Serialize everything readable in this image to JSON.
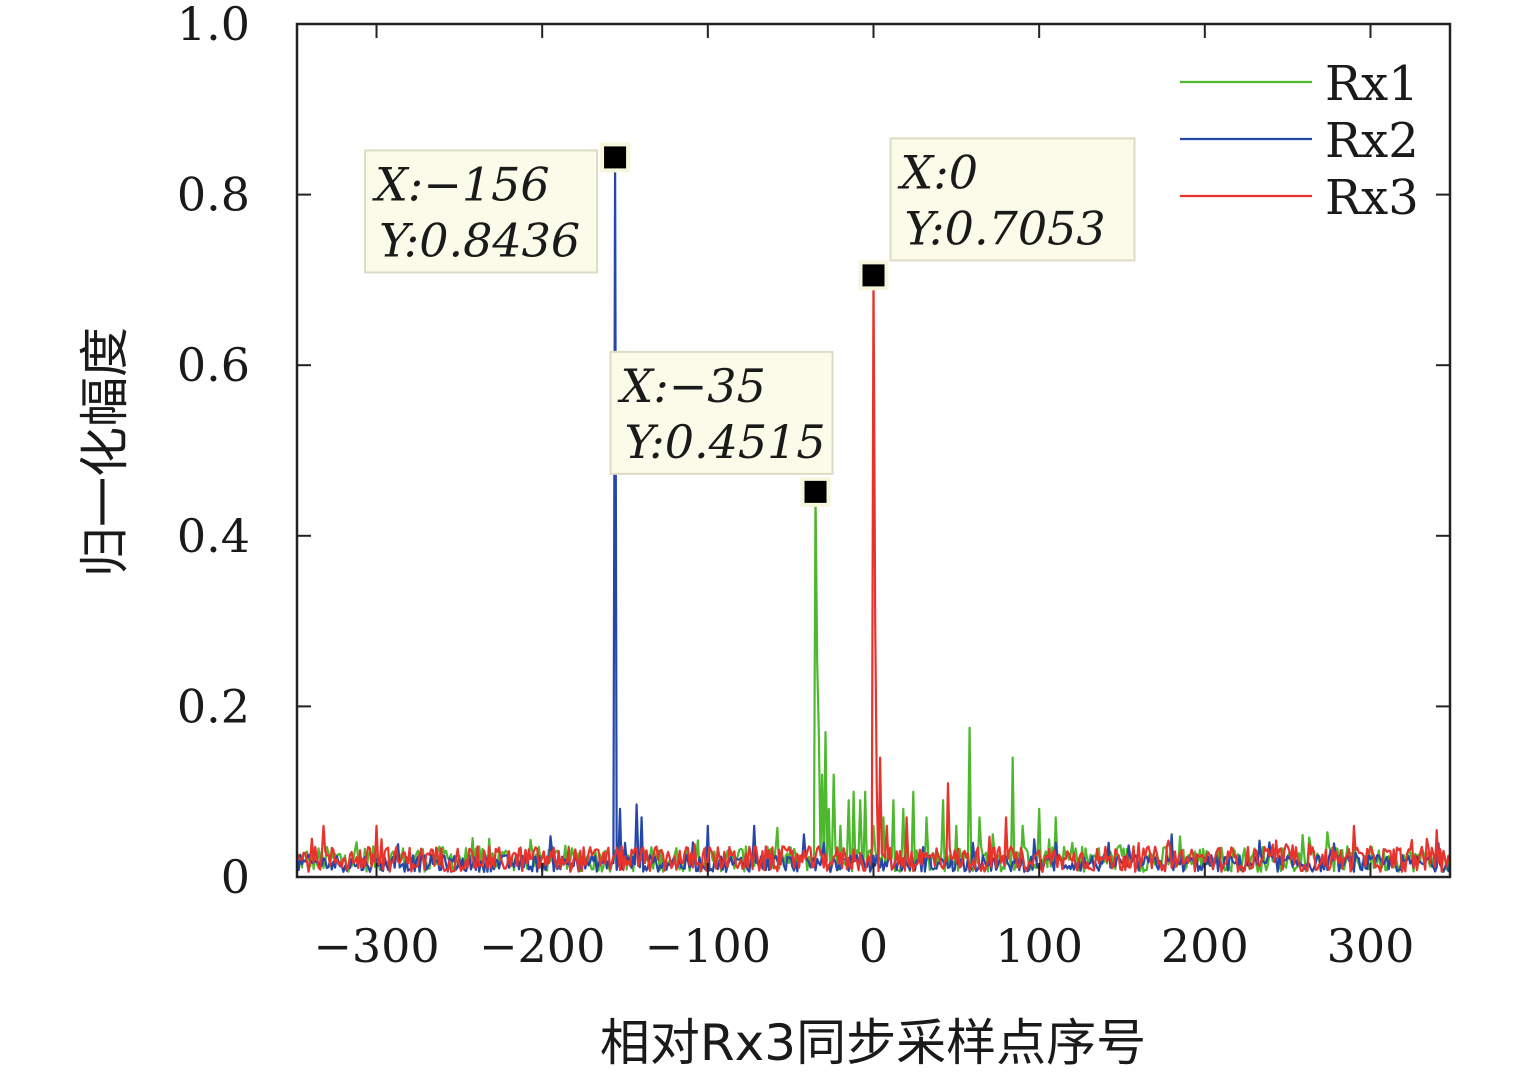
{
  "chart_data": {
    "type": "line",
    "xlabel": "相对Rx3同步采样点序号",
    "ylabel": "归一化幅度",
    "xlim": [
      -348,
      348
    ],
    "ylim": [
      0,
      1.0
    ],
    "x_ticks": [
      "−300",
      "−200",
      "−100",
      "0",
      "100",
      "200",
      "300"
    ],
    "x_tick_values": [
      -300,
      -200,
      -100,
      0,
      100,
      200,
      300
    ],
    "y_ticks": [
      "0",
      "0.2",
      "0.4",
      "0.6",
      "0.8",
      "1.0"
    ],
    "y_tick_values": [
      0,
      0.2,
      0.4,
      0.6,
      0.8,
      1.0
    ],
    "grid": false,
    "legend_position": "top-right",
    "series": [
      {
        "name": "Rx1",
        "color": "#4db82e",
        "peak": {
          "x": -35,
          "y": 0.4515
        },
        "noise_level": 0.03,
        "points": [
          [
            -34,
            0.25
          ],
          [
            -33,
            0.17
          ],
          [
            -31,
            0.12
          ],
          [
            -29,
            0.17
          ],
          [
            -27,
            0.08
          ],
          [
            -24,
            0.12
          ],
          [
            -20,
            0.06
          ],
          [
            -15,
            0.09
          ],
          [
            -12,
            0.1
          ],
          [
            -8,
            0.09
          ],
          [
            -5,
            0.1
          ],
          [
            0,
            0.06
          ],
          [
            6,
            0.07
          ],
          [
            12,
            0.09
          ],
          [
            18,
            0.08
          ],
          [
            24,
            0.1
          ],
          [
            32,
            0.07
          ],
          [
            42,
            0.09
          ],
          [
            50,
            0.06
          ],
          [
            58,
            0.175
          ],
          [
            64,
            0.07
          ],
          [
            72,
            0.05
          ],
          [
            84,
            0.14
          ],
          [
            90,
            0.06
          ],
          [
            100,
            0.08
          ],
          [
            110,
            0.07
          ],
          [
            120,
            0.04
          ]
        ]
      },
      {
        "name": "Rx2",
        "color": "#2547a8",
        "peak": {
          "x": -156,
          "y": 0.8436
        },
        "noise_level": 0.02,
        "points": [
          [
            -153,
            0.08
          ],
          [
            -150,
            0.04
          ],
          [
            -143,
            0.085
          ],
          [
            -140,
            0.07
          ],
          [
            -100,
            0.06
          ],
          [
            -72,
            0.06
          ],
          [
            -42,
            0.05
          ],
          [
            -30,
            0.04
          ],
          [
            30,
            0.035
          ],
          [
            60,
            0.04
          ],
          [
            110,
            0.04
          ],
          [
            180,
            0.05
          ]
        ]
      },
      {
        "name": "Rx3",
        "color": "#e8322c",
        "peak": {
          "x": 0,
          "y": 0.7053
        },
        "noise_level": 0.03,
        "points": [
          [
            -332,
            0.06
          ],
          [
            -300,
            0.06
          ],
          [
            1,
            0.3
          ],
          [
            2,
            0.1
          ],
          [
            4,
            0.14
          ],
          [
            8,
            0.06
          ],
          [
            20,
            0.07
          ],
          [
            45,
            0.11
          ],
          [
            80,
            0.07
          ],
          [
            290,
            0.06
          ],
          [
            340,
            0.055
          ]
        ]
      }
    ],
    "annotations": [
      {
        "x_text": "X:−156",
        "y_text": "Y:0.8436",
        "x": -156,
        "y": 0.8436,
        "side": "left"
      },
      {
        "x_text": "X:−35",
        "y_text": "Y:0.4515",
        "x": -35,
        "y": 0.4515,
        "side": "above"
      },
      {
        "x_text": "X:0",
        "y_text": "Y:0.7053",
        "x": 0,
        "y": 0.7053,
        "side": "right"
      }
    ]
  }
}
